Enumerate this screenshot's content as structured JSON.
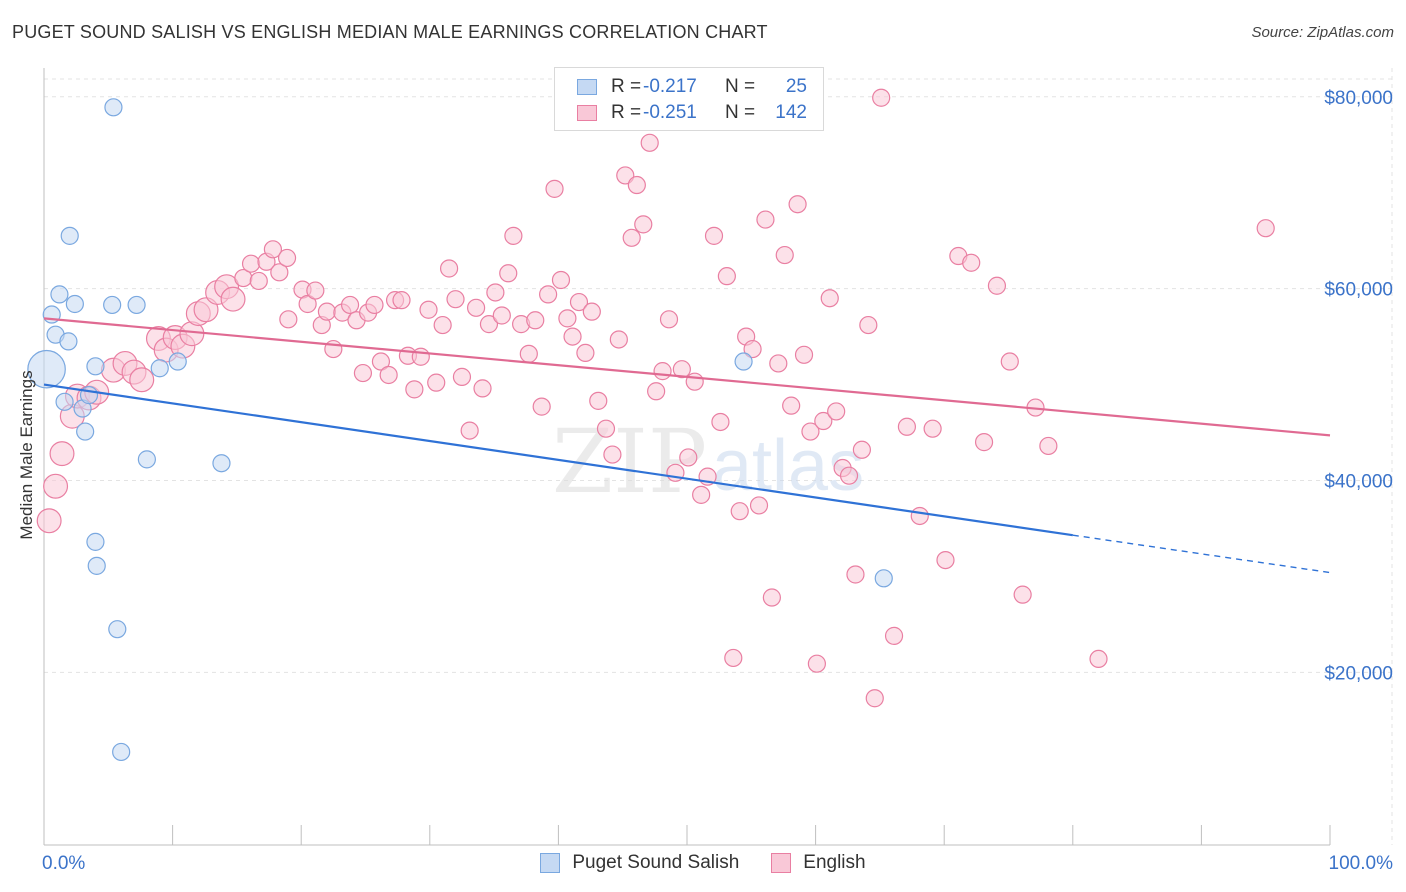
{
  "header": {
    "title": "PUGET SOUND SALISH VS ENGLISH MEDIAN MALE EARNINGS CORRELATION CHART",
    "source": "Source: ZipAtlas.com"
  },
  "watermark": {
    "zip": "ZIP",
    "atlas": "atlas"
  },
  "legend": {
    "rows": [
      {
        "r_label": "R =",
        "r_value": "-0.217",
        "n_label": "N =",
        "n_value": "25",
        "color": "#7aa8e0",
        "fill": "#c5d9f3"
      },
      {
        "r_label": "R =",
        "r_value": "-0.251",
        "n_label": "N =",
        "n_value": "142",
        "color": "#e97fa2",
        "fill": "#f9c8d7"
      }
    ]
  },
  "bottom_legend": [
    {
      "label": "Puget Sound Salish",
      "color": "#7aa8e0",
      "fill": "#c5d9f3"
    },
    {
      "label": "English",
      "color": "#e97fa2",
      "fill": "#f9c8d7"
    }
  ],
  "chart_data": {
    "type": "scatter",
    "title": "PUGET SOUND SALISH VS ENGLISH MEDIAN MALE EARNINGS CORRELATION CHART",
    "xlabel": "",
    "ylabel": "Median Male Earnings",
    "xlim": [
      0,
      100
    ],
    "ylim": [
      2000,
      83000
    ],
    "x_tick_labels": [
      "0.0%",
      "100.0%"
    ],
    "y_ticks": [
      20000,
      40000,
      60000,
      80000
    ],
    "y_tick_labels": [
      "$20,000",
      "$40,000",
      "$60,000",
      "$80,000"
    ],
    "grid": true,
    "series": [
      {
        "name": "Puget Sound Salish",
        "color": "#7aa8e0",
        "fill": "#c5d9f3",
        "trend": {
          "x": [
            0,
            80
          ],
          "y": [
            50000,
            34300
          ],
          "dashed_to": [
            100,
            30400
          ]
        },
        "points": [
          {
            "x": 0.2,
            "y": 51600,
            "s": 2.2
          },
          {
            "x": 0.6,
            "y": 57300,
            "s": 1
          },
          {
            "x": 1.2,
            "y": 59400,
            "s": 1
          },
          {
            "x": 0.9,
            "y": 55200,
            "s": 1
          },
          {
            "x": 2.0,
            "y": 65500,
            "s": 1
          },
          {
            "x": 1.9,
            "y": 54500,
            "s": 1
          },
          {
            "x": 2.4,
            "y": 58400,
            "s": 1
          },
          {
            "x": 1.6,
            "y": 48200,
            "s": 1
          },
          {
            "x": 3.0,
            "y": 47500,
            "s": 1
          },
          {
            "x": 3.5,
            "y": 48900,
            "s": 1
          },
          {
            "x": 3.2,
            "y": 45100,
            "s": 1
          },
          {
            "x": 4.0,
            "y": 51900,
            "s": 1
          },
          {
            "x": 5.3,
            "y": 58300,
            "s": 1
          },
          {
            "x": 7.2,
            "y": 58300,
            "s": 1
          },
          {
            "x": 5.4,
            "y": 78900,
            "s": 1
          },
          {
            "x": 9.0,
            "y": 51700,
            "s": 1
          },
          {
            "x": 10.4,
            "y": 52400,
            "s": 1
          },
          {
            "x": 8.0,
            "y": 42200,
            "s": 1
          },
          {
            "x": 13.8,
            "y": 41800,
            "s": 1
          },
          {
            "x": 4.0,
            "y": 33600,
            "s": 1
          },
          {
            "x": 4.1,
            "y": 31100,
            "s": 1
          },
          {
            "x": 5.7,
            "y": 24500,
            "s": 1
          },
          {
            "x": 6.0,
            "y": 11700,
            "s": 1
          },
          {
            "x": 54.4,
            "y": 52400,
            "s": 1
          },
          {
            "x": 65.3,
            "y": 29800,
            "s": 1
          }
        ]
      },
      {
        "name": "English",
        "color": "#e97fa2",
        "fill": "#f9c8d7",
        "trend": {
          "x": [
            0,
            100
          ],
          "y": [
            56900,
            44700
          ]
        },
        "points": [
          {
            "x": 0.4,
            "y": 35800,
            "s": 1.4
          },
          {
            "x": 0.9,
            "y": 39400,
            "s": 1.4
          },
          {
            "x": 1.4,
            "y": 42800,
            "s": 1.4
          },
          {
            "x": 2.2,
            "y": 46700,
            "s": 1.4
          },
          {
            "x": 2.6,
            "y": 48800,
            "s": 1.4
          },
          {
            "x": 3.5,
            "y": 48600,
            "s": 1.4
          },
          {
            "x": 4.1,
            "y": 49200,
            "s": 1.4
          },
          {
            "x": 5.4,
            "y": 51500,
            "s": 1.4
          },
          {
            "x": 6.3,
            "y": 52200,
            "s": 1.4
          },
          {
            "x": 7.0,
            "y": 51300,
            "s": 1.4
          },
          {
            "x": 8.9,
            "y": 54800,
            "s": 1.4
          },
          {
            "x": 9.5,
            "y": 53600,
            "s": 1.4
          },
          {
            "x": 10.2,
            "y": 54900,
            "s": 1.4
          },
          {
            "x": 10.8,
            "y": 54000,
            "s": 1.4
          },
          {
            "x": 11.5,
            "y": 55300,
            "s": 1.4
          },
          {
            "x": 12.0,
            "y": 57400,
            "s": 1.4
          },
          {
            "x": 12.6,
            "y": 57800,
            "s": 1.4
          },
          {
            "x": 13.5,
            "y": 59600,
            "s": 1.4
          },
          {
            "x": 14.2,
            "y": 60200,
            "s": 1.4
          },
          {
            "x": 14.7,
            "y": 58900,
            "s": 1.4
          },
          {
            "x": 15.5,
            "y": 61100,
            "s": 1
          },
          {
            "x": 16.1,
            "y": 62600,
            "s": 1
          },
          {
            "x": 16.7,
            "y": 60800,
            "s": 1
          },
          {
            "x": 17.3,
            "y": 62800,
            "s": 1
          },
          {
            "x": 17.8,
            "y": 64100,
            "s": 1
          },
          {
            "x": 18.3,
            "y": 61700,
            "s": 1
          },
          {
            "x": 18.9,
            "y": 63200,
            "s": 1
          },
          {
            "x": 19.0,
            "y": 56800,
            "s": 1
          },
          {
            "x": 20.1,
            "y": 59900,
            "s": 1
          },
          {
            "x": 20.5,
            "y": 58400,
            "s": 1
          },
          {
            "x": 21.1,
            "y": 59800,
            "s": 1
          },
          {
            "x": 21.6,
            "y": 56200,
            "s": 1
          },
          {
            "x": 22.0,
            "y": 57600,
            "s": 1
          },
          {
            "x": 22.5,
            "y": 53700,
            "s": 1
          },
          {
            "x": 23.2,
            "y": 57500,
            "s": 1
          },
          {
            "x": 23.8,
            "y": 58300,
            "s": 1
          },
          {
            "x": 24.3,
            "y": 56700,
            "s": 1
          },
          {
            "x": 24.8,
            "y": 51200,
            "s": 1
          },
          {
            "x": 25.2,
            "y": 57500,
            "s": 1
          },
          {
            "x": 25.7,
            "y": 58300,
            "s": 1
          },
          {
            "x": 26.2,
            "y": 52400,
            "s": 1
          },
          {
            "x": 26.8,
            "y": 51000,
            "s": 1
          },
          {
            "x": 27.3,
            "y": 58800,
            "s": 1
          },
          {
            "x": 27.8,
            "y": 58800,
            "s": 1
          },
          {
            "x": 28.3,
            "y": 53000,
            "s": 1
          },
          {
            "x": 28.8,
            "y": 49500,
            "s": 1
          },
          {
            "x": 29.3,
            "y": 52900,
            "s": 1
          },
          {
            "x": 29.9,
            "y": 57800,
            "s": 1
          },
          {
            "x": 30.5,
            "y": 50200,
            "s": 1
          },
          {
            "x": 31.0,
            "y": 56200,
            "s": 1
          },
          {
            "x": 31.5,
            "y": 62100,
            "s": 1
          },
          {
            "x": 32.0,
            "y": 58900,
            "s": 1
          },
          {
            "x": 32.5,
            "y": 50800,
            "s": 1
          },
          {
            "x": 33.1,
            "y": 45200,
            "s": 1
          },
          {
            "x": 33.6,
            "y": 58000,
            "s": 1
          },
          {
            "x": 34.1,
            "y": 49600,
            "s": 1
          },
          {
            "x": 34.6,
            "y": 56300,
            "s": 1
          },
          {
            "x": 35.1,
            "y": 59600,
            "s": 1
          },
          {
            "x": 35.6,
            "y": 57200,
            "s": 1
          },
          {
            "x": 36.1,
            "y": 61600,
            "s": 1
          },
          {
            "x": 36.5,
            "y": 65500,
            "s": 1
          },
          {
            "x": 37.1,
            "y": 56300,
            "s": 1
          },
          {
            "x": 37.7,
            "y": 53200,
            "s": 1
          },
          {
            "x": 38.2,
            "y": 56700,
            "s": 1
          },
          {
            "x": 38.7,
            "y": 47700,
            "s": 1
          },
          {
            "x": 39.2,
            "y": 59400,
            "s": 1
          },
          {
            "x": 39.7,
            "y": 70400,
            "s": 1
          },
          {
            "x": 40.2,
            "y": 60900,
            "s": 1
          },
          {
            "x": 40.7,
            "y": 56900,
            "s": 1
          },
          {
            "x": 41.1,
            "y": 55000,
            "s": 1
          },
          {
            "x": 41.6,
            "y": 58600,
            "s": 1
          },
          {
            "x": 42.1,
            "y": 53300,
            "s": 1
          },
          {
            "x": 42.6,
            "y": 57600,
            "s": 1
          },
          {
            "x": 43.1,
            "y": 48300,
            "s": 1
          },
          {
            "x": 43.7,
            "y": 45400,
            "s": 1
          },
          {
            "x": 44.2,
            "y": 42700,
            "s": 1
          },
          {
            "x": 44.7,
            "y": 54700,
            "s": 1
          },
          {
            "x": 45.2,
            "y": 71800,
            "s": 1
          },
          {
            "x": 45.7,
            "y": 65300,
            "s": 1
          },
          {
            "x": 46.1,
            "y": 70800,
            "s": 1
          },
          {
            "x": 46.6,
            "y": 66700,
            "s": 1
          },
          {
            "x": 47.1,
            "y": 75200,
            "s": 1
          },
          {
            "x": 47.6,
            "y": 49300,
            "s": 1
          },
          {
            "x": 48.1,
            "y": 51400,
            "s": 1
          },
          {
            "x": 48.6,
            "y": 56800,
            "s": 1
          },
          {
            "x": 49.1,
            "y": 40800,
            "s": 1
          },
          {
            "x": 49.6,
            "y": 51600,
            "s": 1
          },
          {
            "x": 50.1,
            "y": 42400,
            "s": 1
          },
          {
            "x": 50.6,
            "y": 50300,
            "s": 1
          },
          {
            "x": 51.1,
            "y": 38500,
            "s": 1
          },
          {
            "x": 51.6,
            "y": 40400,
            "s": 1
          },
          {
            "x": 52.1,
            "y": 65500,
            "s": 1
          },
          {
            "x": 52.6,
            "y": 46100,
            "s": 1
          },
          {
            "x": 53.1,
            "y": 61300,
            "s": 1
          },
          {
            "x": 53.6,
            "y": 21500,
            "s": 1
          },
          {
            "x": 54.1,
            "y": 36800,
            "s": 1
          },
          {
            "x": 54.6,
            "y": 55000,
            "s": 1
          },
          {
            "x": 55.1,
            "y": 53700,
            "s": 1
          },
          {
            "x": 55.6,
            "y": 37400,
            "s": 1
          },
          {
            "x": 56.1,
            "y": 67200,
            "s": 1
          },
          {
            "x": 56.6,
            "y": 27800,
            "s": 1
          },
          {
            "x": 57.1,
            "y": 52200,
            "s": 1
          },
          {
            "x": 57.6,
            "y": 63500,
            "s": 1
          },
          {
            "x": 58.1,
            "y": 47800,
            "s": 1
          },
          {
            "x": 58.6,
            "y": 68800,
            "s": 1
          },
          {
            "x": 59.1,
            "y": 53100,
            "s": 1
          },
          {
            "x": 59.6,
            "y": 45100,
            "s": 1
          },
          {
            "x": 60.1,
            "y": 20900,
            "s": 1
          },
          {
            "x": 60.6,
            "y": 46200,
            "s": 1
          },
          {
            "x": 61.1,
            "y": 59000,
            "s": 1
          },
          {
            "x": 61.6,
            "y": 47200,
            "s": 1
          },
          {
            "x": 62.1,
            "y": 41300,
            "s": 1
          },
          {
            "x": 62.6,
            "y": 40500,
            "s": 1
          },
          {
            "x": 63.1,
            "y": 30200,
            "s": 1
          },
          {
            "x": 63.6,
            "y": 43200,
            "s": 1
          },
          {
            "x": 64.1,
            "y": 56200,
            "s": 1
          },
          {
            "x": 64.6,
            "y": 17300,
            "s": 1
          },
          {
            "x": 65.1,
            "y": 79900,
            "s": 1
          },
          {
            "x": 66.1,
            "y": 23800,
            "s": 1
          },
          {
            "x": 67.1,
            "y": 45600,
            "s": 1
          },
          {
            "x": 68.1,
            "y": 36300,
            "s": 1
          },
          {
            "x": 69.1,
            "y": 45400,
            "s": 1
          },
          {
            "x": 70.1,
            "y": 31700,
            "s": 1
          },
          {
            "x": 71.1,
            "y": 63400,
            "s": 1
          },
          {
            "x": 72.1,
            "y": 62700,
            "s": 1
          },
          {
            "x": 73.1,
            "y": 44000,
            "s": 1
          },
          {
            "x": 74.1,
            "y": 60300,
            "s": 1
          },
          {
            "x": 75.1,
            "y": 52400,
            "s": 1
          },
          {
            "x": 76.1,
            "y": 28100,
            "s": 1
          },
          {
            "x": 77.1,
            "y": 47600,
            "s": 1
          },
          {
            "x": 78.1,
            "y": 43600,
            "s": 1
          },
          {
            "x": 82.0,
            "y": 21400,
            "s": 1
          },
          {
            "x": 95.0,
            "y": 66300,
            "s": 1
          },
          {
            "x": 7.6,
            "y": 50500,
            "s": 1.4
          }
        ]
      }
    ]
  }
}
